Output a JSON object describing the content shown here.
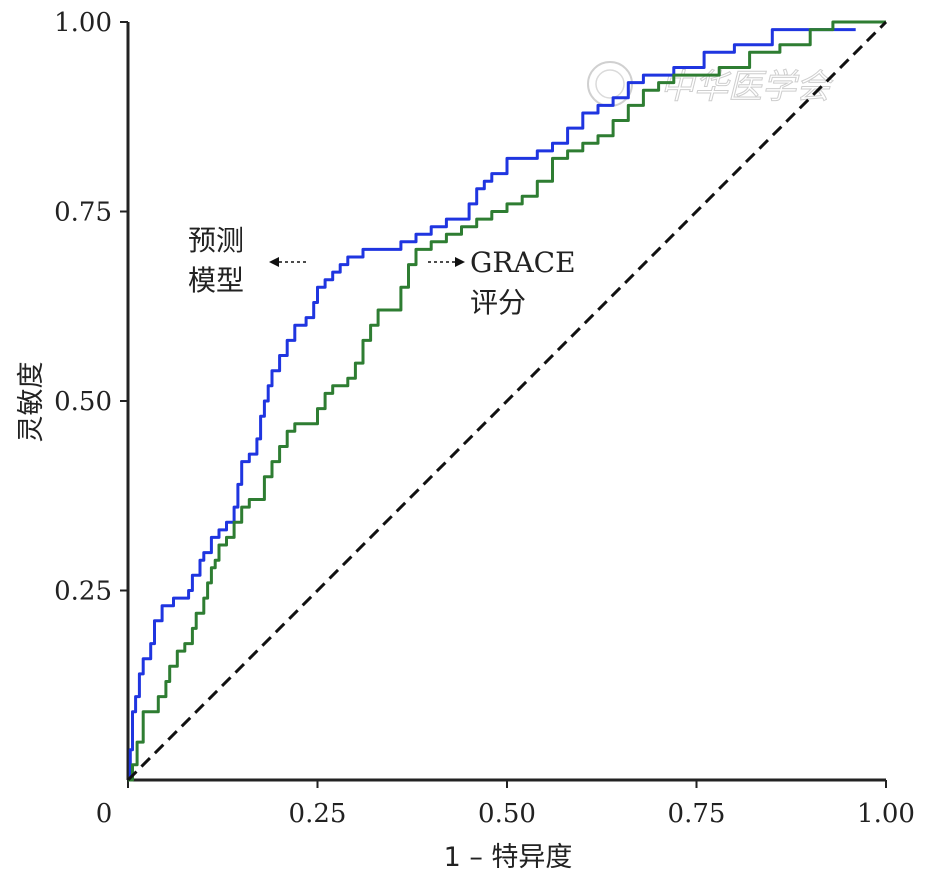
{
  "chart_data": {
    "type": "line",
    "title": "",
    "xlabel": "1 – 特异度",
    "ylabel": "灵敏度",
    "xlim": [
      0,
      1
    ],
    "ylim": [
      0,
      1
    ],
    "x_ticks": [
      "0",
      "0.25",
      "0.50",
      "0.75",
      "1.00"
    ],
    "y_ticks": [
      "0.25",
      "0.50",
      "0.75",
      "1.00"
    ],
    "grid": false,
    "legend": "none",
    "series": [
      {
        "color": "#1f35e0",
        "points": [
          [
            0,
            0
          ],
          [
            0.003,
            0.04
          ],
          [
            0.006,
            0.09
          ],
          [
            0.01,
            0.11
          ],
          [
            0.015,
            0.14
          ],
          [
            0.02,
            0.16
          ],
          [
            0.03,
            0.18
          ],
          [
            0.035,
            0.21
          ],
          [
            0.045,
            0.23
          ],
          [
            0.06,
            0.24
          ],
          [
            0.07,
            0.24
          ],
          [
            0.08,
            0.25
          ],
          [
            0.085,
            0.27
          ],
          [
            0.095,
            0.29
          ],
          [
            0.1,
            0.3
          ],
          [
            0.11,
            0.32
          ],
          [
            0.12,
            0.33
          ],
          [
            0.13,
            0.34
          ],
          [
            0.14,
            0.36
          ],
          [
            0.145,
            0.39
          ],
          [
            0.15,
            0.42
          ],
          [
            0.16,
            0.43
          ],
          [
            0.17,
            0.45
          ],
          [
            0.175,
            0.48
          ],
          [
            0.18,
            0.5
          ],
          [
            0.185,
            0.52
          ],
          [
            0.19,
            0.54
          ],
          [
            0.2,
            0.56
          ],
          [
            0.21,
            0.58
          ],
          [
            0.22,
            0.6
          ],
          [
            0.235,
            0.61
          ],
          [
            0.245,
            0.63
          ],
          [
            0.25,
            0.65
          ],
          [
            0.26,
            0.66
          ],
          [
            0.27,
            0.67
          ],
          [
            0.28,
            0.68
          ],
          [
            0.29,
            0.69
          ],
          [
            0.3,
            0.69
          ],
          [
            0.31,
            0.7
          ],
          [
            0.32,
            0.7
          ],
          [
            0.33,
            0.7
          ],
          [
            0.34,
            0.7
          ],
          [
            0.36,
            0.71
          ],
          [
            0.38,
            0.72
          ],
          [
            0.39,
            0.72
          ],
          [
            0.4,
            0.73
          ],
          [
            0.42,
            0.74
          ],
          [
            0.45,
            0.76
          ],
          [
            0.46,
            0.78
          ],
          [
            0.47,
            0.79
          ],
          [
            0.48,
            0.8
          ],
          [
            0.5,
            0.82
          ],
          [
            0.52,
            0.82
          ],
          [
            0.54,
            0.83
          ],
          [
            0.56,
            0.84
          ],
          [
            0.58,
            0.86
          ],
          [
            0.6,
            0.88
          ],
          [
            0.62,
            0.89
          ],
          [
            0.64,
            0.9
          ],
          [
            0.66,
            0.92
          ],
          [
            0.68,
            0.93
          ],
          [
            0.72,
            0.94
          ],
          [
            0.76,
            0.96
          ],
          [
            0.8,
            0.97
          ],
          [
            0.85,
            0.99
          ],
          [
            0.9,
            0.99
          ],
          [
            0.96,
            0.99
          ]
        ]
      },
      {
        "color": "#2e7d32",
        "points": [
          [
            0,
            0
          ],
          [
            0.006,
            0.02
          ],
          [
            0.012,
            0.05
          ],
          [
            0.02,
            0.09
          ],
          [
            0.03,
            0.09
          ],
          [
            0.04,
            0.11
          ],
          [
            0.05,
            0.13
          ],
          [
            0.055,
            0.15
          ],
          [
            0.065,
            0.17
          ],
          [
            0.075,
            0.18
          ],
          [
            0.085,
            0.2
          ],
          [
            0.09,
            0.22
          ],
          [
            0.1,
            0.24
          ],
          [
            0.105,
            0.26
          ],
          [
            0.11,
            0.28
          ],
          [
            0.115,
            0.29
          ],
          [
            0.12,
            0.31
          ],
          [
            0.13,
            0.32
          ],
          [
            0.14,
            0.34
          ],
          [
            0.15,
            0.36
          ],
          [
            0.16,
            0.37
          ],
          [
            0.17,
            0.37
          ],
          [
            0.18,
            0.4
          ],
          [
            0.19,
            0.42
          ],
          [
            0.2,
            0.44
          ],
          [
            0.21,
            0.46
          ],
          [
            0.22,
            0.47
          ],
          [
            0.23,
            0.47
          ],
          [
            0.25,
            0.49
          ],
          [
            0.26,
            0.51
          ],
          [
            0.27,
            0.52
          ],
          [
            0.28,
            0.52
          ],
          [
            0.29,
            0.53
          ],
          [
            0.3,
            0.55
          ],
          [
            0.31,
            0.58
          ],
          [
            0.32,
            0.6
          ],
          [
            0.33,
            0.62
          ],
          [
            0.34,
            0.62
          ],
          [
            0.35,
            0.62
          ],
          [
            0.36,
            0.65
          ],
          [
            0.37,
            0.68
          ],
          [
            0.38,
            0.7
          ],
          [
            0.4,
            0.71
          ],
          [
            0.42,
            0.72
          ],
          [
            0.44,
            0.73
          ],
          [
            0.46,
            0.74
          ],
          [
            0.48,
            0.75
          ],
          [
            0.5,
            0.76
          ],
          [
            0.52,
            0.77
          ],
          [
            0.54,
            0.79
          ],
          [
            0.56,
            0.82
          ],
          [
            0.58,
            0.83
          ],
          [
            0.6,
            0.84
          ],
          [
            0.62,
            0.85
          ],
          [
            0.64,
            0.87
          ],
          [
            0.66,
            0.89
          ],
          [
            0.68,
            0.91
          ],
          [
            0.7,
            0.92
          ],
          [
            0.72,
            0.93
          ],
          [
            0.75,
            0.93
          ],
          [
            0.78,
            0.94
          ],
          [
            0.82,
            0.96
          ],
          [
            0.86,
            0.97
          ],
          [
            0.9,
            0.99
          ],
          [
            0.93,
            1.0
          ],
          [
            0.96,
            1.0
          ],
          [
            1.0,
            1.0
          ]
        ]
      },
      {
        "color": "#111111",
        "dashed": true,
        "points": [
          [
            0,
            0
          ],
          [
            1,
            1
          ]
        ]
      }
    ],
    "annotations": [
      {
        "lines": [
          "预测",
          "模型"
        ],
        "arrow": "left"
      },
      {
        "lines": [
          "GRACE",
          "评分"
        ],
        "arrow": "right"
      }
    ]
  },
  "watermark": "中华医学会"
}
